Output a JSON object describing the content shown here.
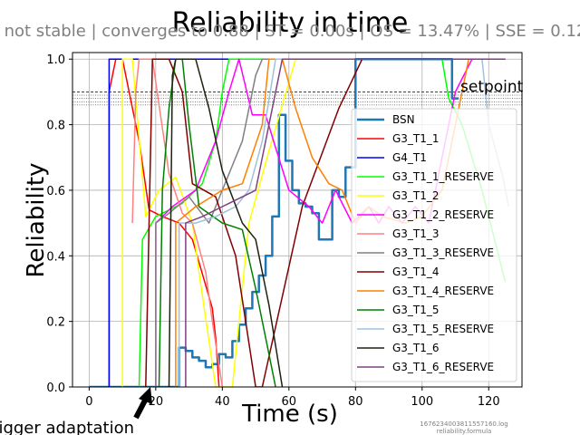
{
  "chart_data": {
    "type": "line",
    "title": "Reliability in time",
    "subtitle": "not stable | converges to 0.88 | ST = 0.00s | OS = 13.47% | SSE = 0.12",
    "xlabel": "Time (s)",
    "ylabel": "Reliability",
    "xlim": [
      -5,
      130
    ],
    "ylim": [
      0,
      1.02
    ],
    "xticks": [
      0,
      20,
      40,
      60,
      80,
      100,
      120
    ],
    "yticks": [
      0.0,
      0.2,
      0.4,
      0.6,
      0.8,
      1.0
    ],
    "grid": true,
    "legend_position": "right",
    "setpoint": {
      "label": "setpoint",
      "value": 0.9,
      "band": [
        0.89,
        0.88,
        0.87,
        0.86
      ]
    },
    "annotation": {
      "text": "trigger adaptation",
      "x": 16.5,
      "y": 0.0
    },
    "footer_lines": [
      "1676234003811557160.log",
      "reliability.formula"
    ],
    "series": [
      {
        "name": "BSN",
        "color": "#1f77b4",
        "width": 2.5,
        "step": true,
        "points": [
          [
            0,
            0
          ],
          [
            26,
            0
          ],
          [
            27,
            0.12
          ],
          [
            29,
            0.11
          ],
          [
            31,
            0.09
          ],
          [
            33,
            0.08
          ],
          [
            35,
            0.06
          ],
          [
            37,
            0.07
          ],
          [
            39,
            0.1
          ],
          [
            41,
            0.09
          ],
          [
            43,
            0.14
          ],
          [
            45,
            0.19
          ],
          [
            47,
            0.24
          ],
          [
            49,
            0.29
          ],
          [
            51,
            0.34
          ],
          [
            53,
            0.4
          ],
          [
            55,
            0.52
          ],
          [
            57,
            0.83
          ],
          [
            59,
            0.69
          ],
          [
            61,
            0.6
          ],
          [
            63,
            0.56
          ],
          [
            65,
            0.55
          ],
          [
            67,
            0.53
          ],
          [
            69,
            0.45
          ],
          [
            73,
            0.6
          ],
          [
            75,
            0.58
          ],
          [
            77,
            0.67
          ],
          [
            79,
            0.67
          ],
          [
            80,
            1.0
          ],
          [
            108,
            1.0
          ],
          [
            109,
            0.88
          ],
          [
            111,
            0.88
          ]
        ]
      },
      {
        "name": "G3_T1_1",
        "color": "#ff0000",
        "width": 1.5,
        "points": [
          [
            6,
            0
          ],
          [
            6,
            0.9
          ],
          [
            8,
            1.0
          ],
          [
            10,
            1.0
          ],
          [
            12,
            0.9
          ],
          [
            15,
            0.75
          ],
          [
            18,
            0.54
          ],
          [
            22,
            0.52
          ],
          [
            27,
            0.5
          ],
          [
            31,
            0.45
          ],
          [
            37,
            0.24
          ],
          [
            38,
            0.15
          ],
          [
            39,
            0.0
          ]
        ]
      },
      {
        "name": "G4_T1",
        "color": "#0000ff",
        "width": 1.5,
        "points": [
          [
            6,
            0
          ],
          [
            6,
            1.0
          ],
          [
            125,
            1.0
          ]
        ]
      },
      {
        "name": "G3_T1_1_RESERVE",
        "color": "#00ff00",
        "width": 1.5,
        "points": [
          [
            15,
            0
          ],
          [
            16,
            0.45
          ],
          [
            20,
            0.52
          ],
          [
            28,
            0.56
          ],
          [
            34,
            0.62
          ],
          [
            38,
            0.75
          ],
          [
            40,
            0.9
          ],
          [
            42,
            1.0
          ],
          [
            106,
            1.0
          ],
          [
            108,
            0.88
          ],
          [
            112,
            0.8
          ],
          [
            118,
            0.6
          ],
          [
            125,
            0.32
          ]
        ]
      },
      {
        "name": "G3_T1_2",
        "color": "#ffff00",
        "width": 1.5,
        "points": [
          [
            10,
            0
          ],
          [
            10,
            1.0
          ],
          [
            13,
            1.0
          ],
          [
            17,
            0.52
          ],
          [
            21,
            0.6
          ],
          [
            26,
            0.64
          ],
          [
            31,
            0.5
          ],
          [
            33,
            0.35
          ],
          [
            38,
            0.0
          ],
          [
            43,
            0.0
          ],
          [
            48,
            0.5
          ],
          [
            54,
            0.72
          ],
          [
            62,
            1.0
          ],
          [
            125,
            1.0
          ]
        ]
      },
      {
        "name": "G3_T1_2_RESERVE",
        "color": "#ff00ff",
        "width": 1.5,
        "points": [
          [
            20,
            0.0
          ],
          [
            20,
            0.5
          ],
          [
            25,
            0.55
          ],
          [
            32,
            0.6
          ],
          [
            38,
            0.75
          ],
          [
            42,
            0.9
          ],
          [
            45,
            1.0
          ],
          [
            49,
            0.83
          ],
          [
            53,
            0.83
          ],
          [
            56,
            0.73
          ],
          [
            60,
            0.6
          ],
          [
            66,
            0.55
          ],
          [
            70,
            0.5
          ],
          [
            74,
            0.6
          ],
          [
            79,
            0.5
          ],
          [
            84,
            0.55
          ],
          [
            87,
            0.5
          ],
          [
            90,
            0.55
          ],
          [
            94,
            0.5
          ],
          [
            98,
            0.55
          ],
          [
            102,
            0.5
          ],
          [
            110,
            0.9
          ],
          [
            115,
            1.0
          ]
        ]
      },
      {
        "name": "G3_T1_3",
        "color": "#ff8080",
        "width": 1.5,
        "points": [
          [
            13,
            0.5
          ],
          [
            14,
            0.9
          ],
          [
            15,
            1.0
          ],
          [
            19,
            1.0
          ],
          [
            24,
            0.65
          ],
          [
            28,
            0.53
          ],
          [
            31,
            0.5
          ],
          [
            35,
            0.35
          ],
          [
            37,
            0.2
          ],
          [
            40,
            0.0
          ]
        ]
      },
      {
        "name": "G3_T1_3_RESERVE",
        "color": "#808080",
        "width": 1.5,
        "points": [
          [
            20,
            0
          ],
          [
            20,
            0.5
          ],
          [
            24,
            0.53
          ],
          [
            30,
            0.58
          ],
          [
            36,
            0.5
          ],
          [
            40,
            0.6
          ],
          [
            46,
            0.75
          ],
          [
            50,
            0.95
          ],
          [
            52,
            1.0
          ],
          [
            125,
            1.0
          ]
        ]
      },
      {
        "name": "G3_T1_4",
        "color": "#800000",
        "width": 1.5,
        "points": [
          [
            17,
            0
          ],
          [
            18,
            0.5
          ],
          [
            19,
            1.0
          ],
          [
            24,
            1.0
          ],
          [
            28,
            0.9
          ],
          [
            31,
            0.62
          ],
          [
            38,
            0.58
          ],
          [
            44,
            0.4
          ],
          [
            50,
            0.0
          ],
          [
            52,
            0.0
          ],
          [
            64,
            0.55
          ],
          [
            75,
            0.85
          ],
          [
            82,
            1.0
          ],
          [
            125,
            1.0
          ]
        ]
      },
      {
        "name": "G3_T1_4_RESERVE",
        "color": "#ff8000",
        "width": 1.5,
        "points": [
          [
            26,
            0
          ],
          [
            26,
            0.5
          ],
          [
            32,
            0.55
          ],
          [
            40,
            0.6
          ],
          [
            46,
            0.62
          ],
          [
            52,
            0.8
          ],
          [
            54,
            1.0
          ],
          [
            58,
            1.0
          ],
          [
            62,
            0.85
          ],
          [
            67,
            0.7
          ],
          [
            72,
            0.62
          ],
          [
            76,
            0.6
          ],
          [
            80,
            0.5
          ],
          [
            84,
            0.55
          ],
          [
            88,
            0.52
          ],
          [
            95,
            0.5
          ],
          [
            100,
            0.52
          ],
          [
            106,
            0.6
          ],
          [
            110,
            0.8
          ],
          [
            114,
            1.0
          ]
        ]
      },
      {
        "name": "G3_T1_5",
        "color": "#008000",
        "width": 1.5,
        "points": [
          [
            21,
            0
          ],
          [
            22,
            0.6
          ],
          [
            24,
            0.85
          ],
          [
            26,
            1.0
          ],
          [
            28,
            1.0
          ],
          [
            30,
            0.8
          ],
          [
            33,
            0.55
          ],
          [
            40,
            0.5
          ],
          [
            46,
            0.48
          ],
          [
            50,
            0.3
          ],
          [
            54,
            0.1
          ],
          [
            56,
            0.0
          ]
        ]
      },
      {
        "name": "G3_T1_5_RESERVE",
        "color": "#a0c0e0",
        "width": 1.5,
        "points": [
          [
            27,
            0
          ],
          [
            27,
            0.5
          ],
          [
            32,
            0.5
          ],
          [
            38,
            0.52
          ],
          [
            44,
            0.55
          ],
          [
            48,
            0.6
          ],
          [
            52,
            0.75
          ],
          [
            56,
            1.0
          ],
          [
            118,
            1.0
          ],
          [
            120,
            0.8
          ],
          [
            124,
            0.65
          ],
          [
            126,
            0.55
          ]
        ]
      },
      {
        "name": "G3_T1_6",
        "color": "#202010",
        "width": 1.5,
        "points": [
          [
            24,
            0
          ],
          [
            25,
            0.95
          ],
          [
            26,
            1.0
          ],
          [
            32,
            1.0
          ],
          [
            36,
            0.85
          ],
          [
            40,
            0.66
          ],
          [
            46,
            0.5
          ],
          [
            50,
            0.45
          ],
          [
            54,
            0.25
          ],
          [
            58,
            0.0
          ]
        ]
      },
      {
        "name": "G3_T1_6_RESERVE",
        "color": "#804080",
        "width": 1.5,
        "points": [
          [
            29,
            0
          ],
          [
            29,
            0.5
          ],
          [
            34,
            0.52
          ],
          [
            40,
            0.55
          ],
          [
            46,
            0.58
          ],
          [
            50,
            0.6
          ],
          [
            54,
            0.8
          ],
          [
            58,
            1.0
          ],
          [
            125,
            1.0
          ]
        ]
      }
    ]
  }
}
